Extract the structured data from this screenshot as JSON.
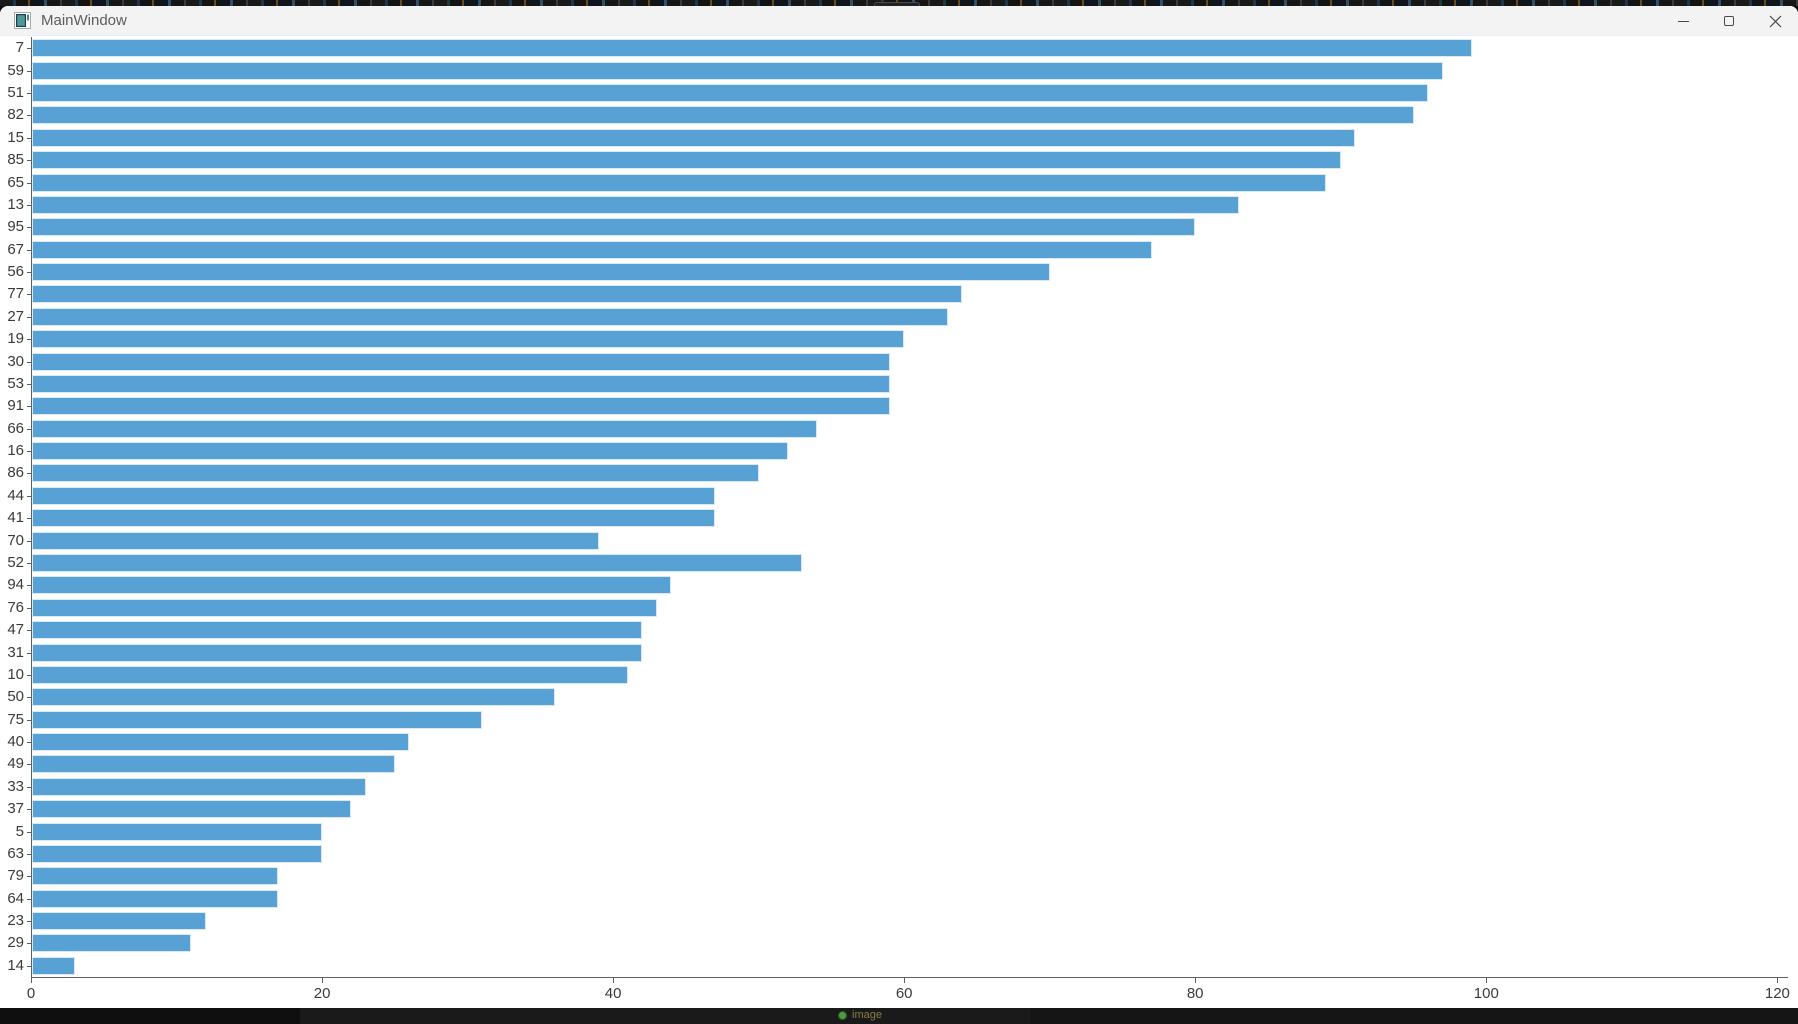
{
  "screen": {
    "taskbar": {
      "app_hint": "image"
    }
  },
  "window": {
    "title": "MainWindow",
    "controls": [
      "minimize",
      "maximize",
      "close"
    ]
  },
  "chart_data": {
    "type": "bar",
    "orientation": "horizontal",
    "title": "",
    "xlabel": "",
    "ylabel": "",
    "grid": false,
    "legend": null,
    "xlim": [
      0,
      120
    ],
    "x_ticks": [
      0,
      20,
      40,
      60,
      80,
      100,
      120
    ],
    "bar_color": "#57a1d4",
    "bar_edge_color": "#d9e9f6",
    "axis_color": "#5f5f5f",
    "categories": [
      "7",
      "59",
      "51",
      "82",
      "15",
      "85",
      "65",
      "13",
      "95",
      "67",
      "56",
      "77",
      "27",
      "19",
      "30",
      "53",
      "91",
      "66",
      "16",
      "86",
      "44",
      "41",
      "70",
      "52",
      "94",
      "76",
      "47",
      "31",
      "10",
      "50",
      "75",
      "40",
      "49",
      "33",
      "37",
      "5",
      "63",
      "79",
      "64",
      "23",
      "29",
      "14"
    ],
    "values": [
      99,
      97,
      96,
      95,
      91,
      90,
      89,
      83,
      80,
      77,
      70,
      64,
      63,
      60,
      59,
      59,
      59,
      54,
      52,
      50,
      47,
      47,
      39,
      53,
      44,
      43,
      42,
      42,
      41,
      36,
      31,
      26,
      25,
      23,
      22,
      20,
      20,
      17,
      17,
      12,
      11,
      3
    ]
  }
}
